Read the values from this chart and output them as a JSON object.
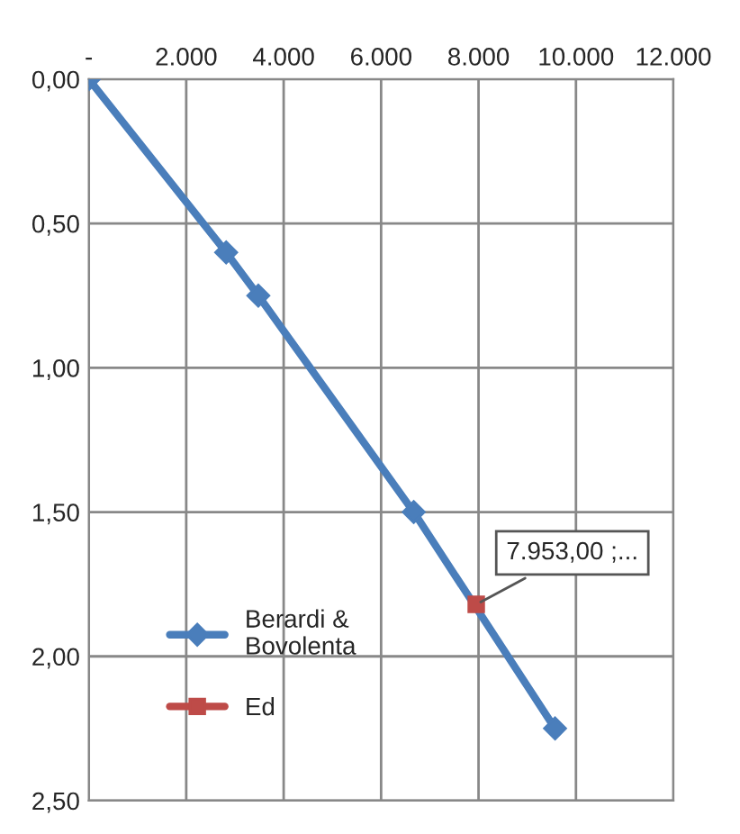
{
  "chart_data": {
    "type": "line",
    "series": [
      {
        "name": "Berardi &\nBovolenta",
        "color": "#4a7ebb",
        "marker": "diamond",
        "x": [
          0,
          2820,
          3480,
          6670,
          9570
        ],
        "values": [
          0,
          0.6,
          0.75,
          1.5,
          2.25
        ]
      },
      {
        "name": "Ed",
        "color": "#be4b48",
        "marker": "square",
        "x": [
          7953
        ],
        "values": [
          1.82
        ]
      }
    ],
    "xlim": [
      0,
      12000
    ],
    "xticks": [
      {
        "value": 0,
        "label": "-"
      },
      {
        "value": 2000,
        "label": "2.000"
      },
      {
        "value": 4000,
        "label": "4.000"
      },
      {
        "value": 6000,
        "label": "6.000"
      },
      {
        "value": 8000,
        "label": "8.000"
      },
      {
        "value": 10000,
        "label": "10.000"
      },
      {
        "value": 12000,
        "label": "12.000"
      }
    ],
    "ylim": [
      2.5,
      0
    ],
    "yticks": [
      {
        "value": 0,
        "label": "0,00"
      },
      {
        "value": 0.5,
        "label": "0,50"
      },
      {
        "value": 1,
        "label": "1,00"
      },
      {
        "value": 1.5,
        "label": "1,50"
      },
      {
        "value": 2,
        "label": "2,00"
      },
      {
        "value": 2.5,
        "label": "2,50"
      }
    ],
    "annotations": [
      {
        "text": "7.953,00 ;...",
        "x": 7953,
        "y": 1.82
      }
    ],
    "grid": true,
    "legend": "bottom left",
    "line_style": "solid"
  }
}
